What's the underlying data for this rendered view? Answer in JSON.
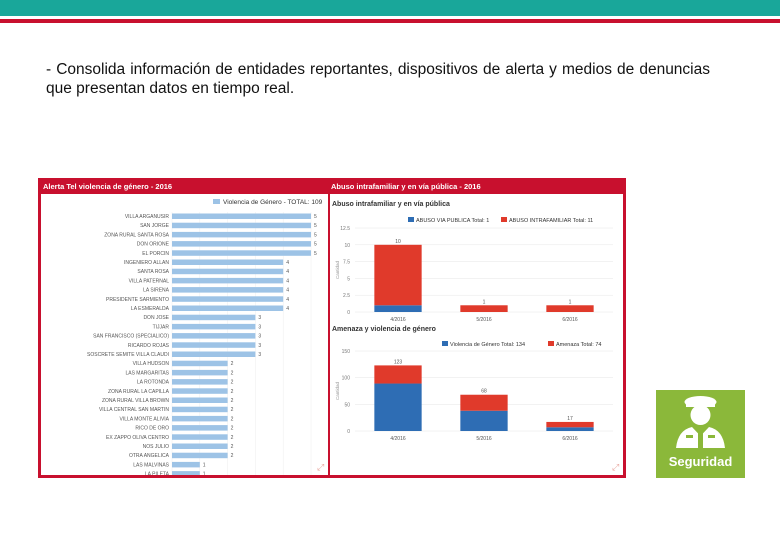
{
  "header": {
    "teal_color": "#19a79a",
    "red_color": "#c8102e"
  },
  "description": "- Consolida información de entidades reportantes, dispositivos de alerta y medios de denuncias que presentan datos en tiempo real.",
  "dashboard": {
    "accent": "#c8102e",
    "left_panel_title": "Alerta Tel violencia de género - 2016",
    "right_panel_title": "Abuso intrafamiliar y en vía pública - 2016"
  },
  "badge": {
    "label": "Seguridad",
    "color": "#8bb83a",
    "icon": "guard-icon"
  },
  "chart_data": [
    {
      "type": "bar",
      "orientation": "horizontal",
      "legend": "Violencia de Género - TOTAL: 109",
      "color": "#9dc3e6",
      "categories": [
        "VILLA ARGANUSIR",
        "SAN JORGE",
        "ZONA RURAL SANTA ROSA",
        "DON ORIONE",
        "EL PORCIN",
        "INGENIERO ALLAN",
        "SANTA ROSA",
        "VILLA PATERNAL",
        "LA SIRENA",
        "PRESIDENTE SARMIENTO",
        "LA ESMERALDA",
        "DON JOSE",
        "TIJJAR",
        "SAN FRANCISCO (SPECIALICO)",
        "RICARDO ROJAS",
        "SOSCRETE SEMITE VILLA CLAUDI",
        "VILLA HUDSON",
        "LAS MARGARITAS",
        "LA ROTONDA",
        "ZONA RURAL LA CAPILLA",
        "ZONA RURAL VILLA BROWN",
        "VILLA CENTRAL SAN MARTIN",
        "VILLA MONTE ALIVIA",
        "RICO DE ORO",
        "EX ZAPPO OLIVA CENTRO",
        "NOS JULIO",
        "OTRA ANGELICA",
        "LAS MALVINAS",
        "LA PILETA"
      ],
      "values": [
        5,
        5,
        5,
        5,
        5,
        4,
        4,
        4,
        4,
        4,
        4,
        3,
        3,
        3,
        3,
        3,
        2,
        2,
        2,
        2,
        2,
        2,
        2,
        2,
        2,
        2,
        2,
        1,
        1
      ],
      "xlim": [
        0,
        5
      ]
    },
    {
      "type": "bar",
      "stacked": true,
      "title": "Abuso intrafamiliar y en vía pública",
      "categories": [
        "4/2016",
        "5/2016",
        "6/2016"
      ],
      "series": [
        {
          "name": "ABUSO VIA PUBLICA Total: 1",
          "color": "#2e6db4",
          "values": [
            1,
            0,
            0
          ]
        },
        {
          "name": "ABUSO INTRAFAMILIAR Total: 11",
          "color": "#e03a2b",
          "values": [
            9,
            1,
            1
          ]
        }
      ],
      "data_labels": [
        "10",
        "1",
        "1"
      ],
      "y_ticks": [
        "0",
        "2.5",
        "5",
        "7.5",
        "10",
        "12.5"
      ],
      "ylabel": "Cantidad",
      "ylim": [
        0,
        12.5
      ]
    },
    {
      "type": "bar",
      "stacked": true,
      "title": "Amenaza y violencia de género",
      "categories": [
        "4/2016",
        "5/2016",
        "6/2016"
      ],
      "series": [
        {
          "name": "Violencia de Género Total: 134",
          "color": "#2e6db4",
          "values": [
            89,
            38,
            7
          ]
        },
        {
          "name": "Amenaza Total: 74",
          "color": "#e03a2b",
          "values": [
            34,
            30,
            10
          ]
        }
      ],
      "data_labels": [
        "123",
        "68",
        "17"
      ],
      "y_ticks": [
        "0",
        "50",
        "100",
        "150"
      ],
      "ylabel": "Cantidad",
      "ylim": [
        0,
        150
      ]
    }
  ]
}
